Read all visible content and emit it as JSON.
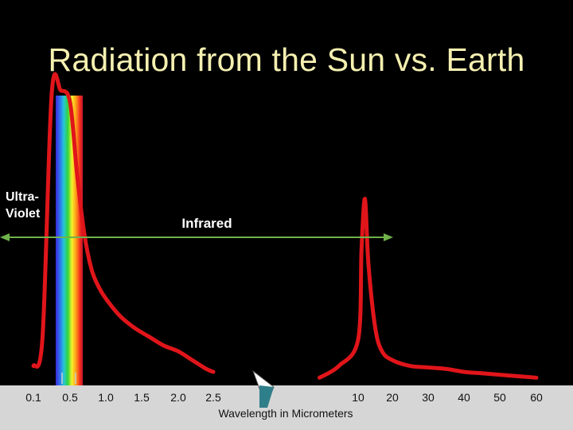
{
  "slide": {
    "title": "Radiation from the Sun vs. Earth"
  },
  "colors": {
    "background": "#000000",
    "title": "#f5f0b0",
    "curve": "#e0151a",
    "arrow": "#6fb24a",
    "label": "#ffffff",
    "axis_band": "#d6d6d6",
    "tick_text": "#111111",
    "pointer": "#2f7f8a"
  },
  "chart_data": {
    "type": "line",
    "title": "Radiation from the Sun vs. Earth",
    "xlabel": "Wavelength in Micrometers",
    "ylabel": "",
    "grid": false,
    "legend": "none",
    "x_ticks": [
      "0.1",
      "0.5",
      "1.0",
      "1.5",
      "2.0",
      "2.5",
      "10",
      "20",
      "30",
      "40",
      "50",
      "60"
    ],
    "annotations": [
      {
        "name": "ultraviolet",
        "text": "Ultra-\nViolet"
      },
      {
        "name": "infrared",
        "text": "Infrared"
      }
    ],
    "series": [
      {
        "x": [
          0.1,
          0.2,
          0.3,
          0.4,
          0.5,
          0.6,
          0.7,
          0.8,
          0.9,
          1.0,
          1.2,
          1.4,
          1.6,
          1.8,
          2.0,
          2.2,
          2.4,
          2.5
        ],
        "y": [
          0.05,
          0.15,
          0.98,
          0.99,
          0.95,
          0.7,
          0.5,
          0.38,
          0.32,
          0.28,
          0.22,
          0.18,
          0.15,
          0.12,
          0.1,
          0.07,
          0.04,
          0.03
        ]
      },
      {
        "x": [
          8,
          9,
          10,
          11,
          12,
          13,
          15,
          17,
          20,
          25,
          30,
          35,
          40,
          45,
          50,
          55,
          60
        ],
        "y": [
          0.01,
          0.05,
          0.14,
          0.45,
          0.62,
          0.4,
          0.18,
          0.1,
          0.07,
          0.05,
          0.045,
          0.04,
          0.03,
          0.025,
          0.02,
          0.015,
          0.01
        ]
      }
    ]
  }
}
